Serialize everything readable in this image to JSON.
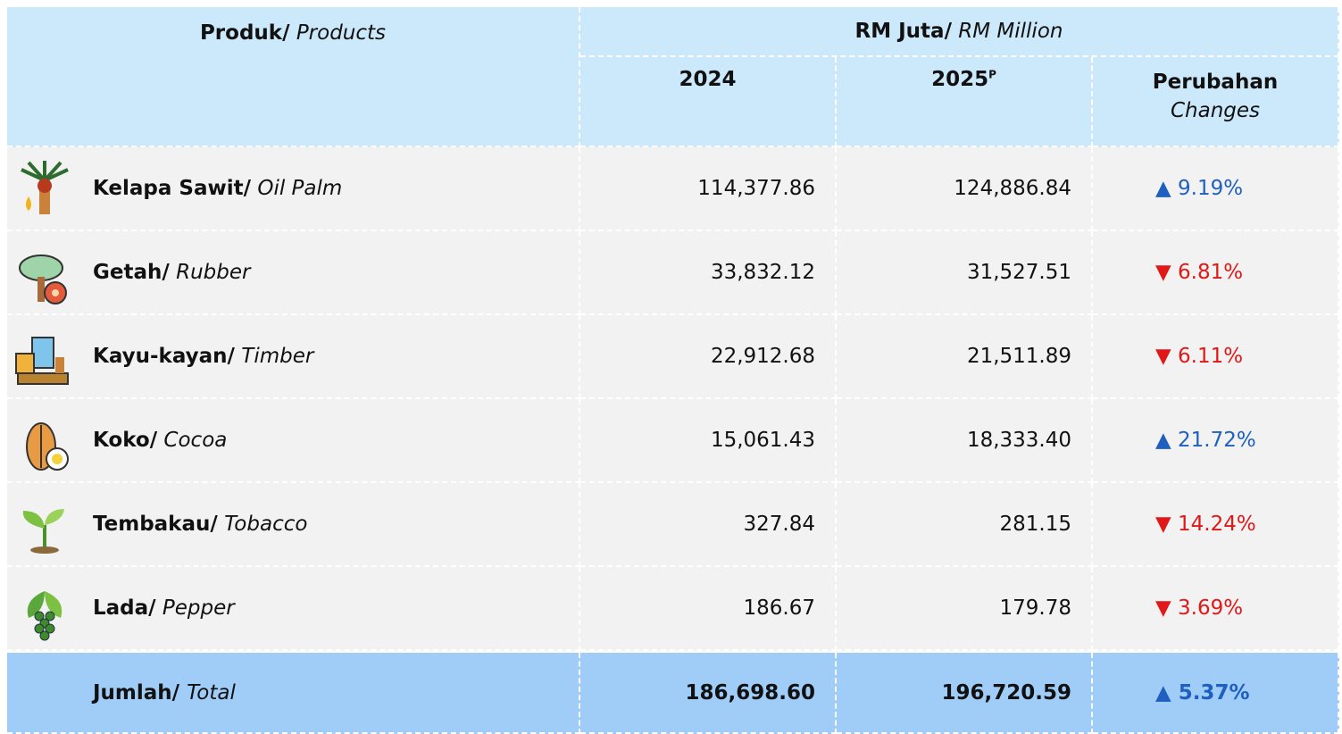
{
  "header": {
    "product": {
      "bold": "Produk/",
      "italic": "Products"
    },
    "unit": {
      "bold": "RM Juta/",
      "italic": "RM Million"
    },
    "col1": "2024",
    "col2": "2025",
    "col2_sup": "P",
    "col3": {
      "bold": "Perubahan",
      "italic": "Changes"
    }
  },
  "table": {
    "rows": [
      {
        "name": "Kelapa Sawit/",
        "english": "Oil Palm",
        "v2024": "114,377.86",
        "v2025": "124,886.84",
        "change": "▲ 9.19%"
      },
      {
        "name": "Getah/",
        "english": "Rubber",
        "v2024": "33,832.12",
        "v2025": "31,527.51",
        "change": "▼ 6.81%"
      },
      {
        "name": "Kayu-kayan/",
        "english": "Timber",
        "v2024": "22,912.68",
        "v2025": "21,511.89",
        "change": "▼ 6.11%"
      },
      {
        "name": "Koko/",
        "english": "Cocoa",
        "v2024": "15,061.43",
        "v2025": "18,333.40",
        "change": "▲ 21.72%"
      },
      {
        "name": "Tembakau/",
        "english": "Tobacco",
        "v2024": "327.84",
        "v2025": "281.15",
        "change": "▼ 14.24%"
      },
      {
        "name": "Lada/",
        "english": "Pepper",
        "v2024": "186.67",
        "v2025": "179.78",
        "change": "▼ 3.69%"
      }
    ],
    "total": {
      "name": "Jumlah/",
      "english": "Total",
      "v2024": "186,698.60",
      "v2025": "196,720.59",
      "change": "▲ 5.37%"
    }
  }
}
